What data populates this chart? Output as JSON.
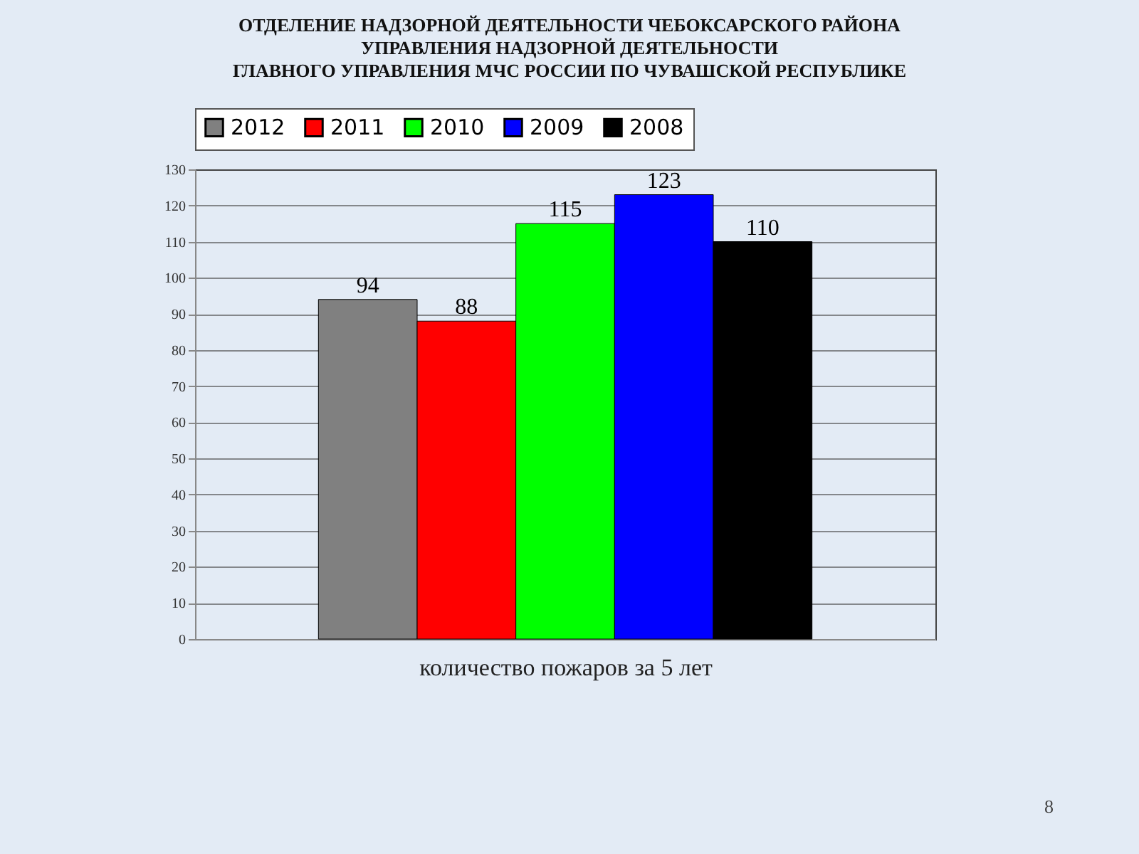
{
  "chart_data": {
    "type": "bar",
    "title": "ОТДЕЛЕНИЕ НАДЗОРНОЙ ДЕЯТЕЛЬНОСТИ ЧЕБОКСАРСКОГО РАЙОНА\nУПРАВЛЕНИЯ НАДЗОРНОЙ ДЕЯТЕЛЬНОСТИ\nГЛАВНОГО УПРАВЛЕНИЯ МЧС РОССИИ ПО ЧУВАШСКОЙ РЕСПУБЛИКЕ",
    "xlabel": "количество пожаров за 5 лет",
    "categories": [
      null
    ],
    "series": [
      {
        "name": "2012",
        "color": "#808080",
        "values": [
          94
        ]
      },
      {
        "name": "2011",
        "color": "#ff0000",
        "values": [
          88
        ]
      },
      {
        "name": "2010",
        "color": "#00ff00",
        "values": [
          115
        ]
      },
      {
        "name": "2009",
        "color": "#0000ff",
        "values": [
          123
        ]
      },
      {
        "name": "2008",
        "color": "#000000",
        "values": [
          110
        ]
      }
    ],
    "ylim": [
      0,
      130
    ],
    "yticks": [
      0,
      10,
      20,
      30,
      40,
      50,
      60,
      70,
      80,
      90,
      100,
      110,
      120,
      130
    ],
    "grid": "y",
    "legend": "top",
    "data_labels": true,
    "annotations": [
      "8"
    ]
  }
}
